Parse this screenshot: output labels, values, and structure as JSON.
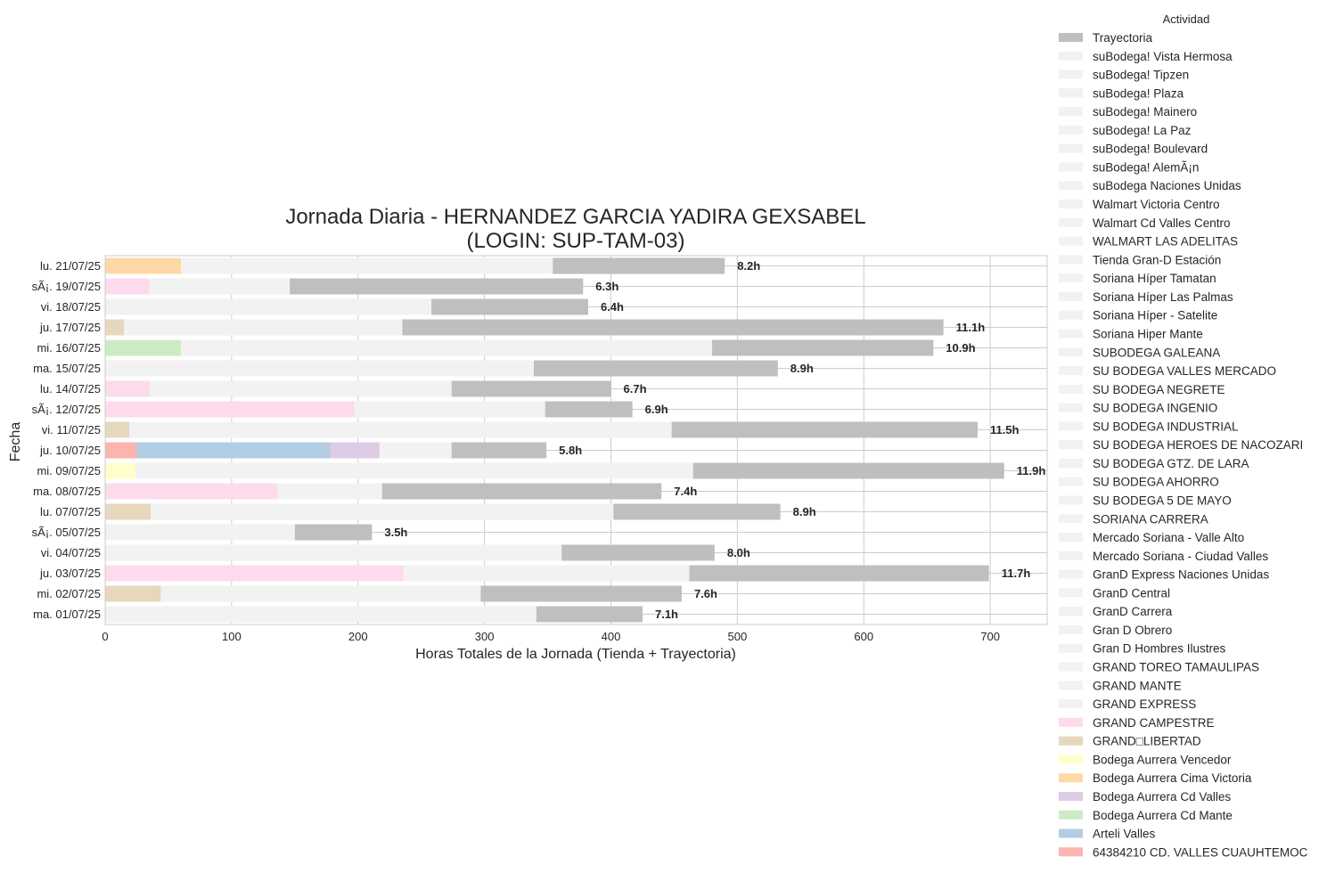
{
  "chart_data": {
    "type": "bar",
    "orientation": "horizontal",
    "stacked": true,
    "title": "Jornada Diaria - HERNANDEZ GARCIA YADIRA GEXSABEL",
    "subtitle": "(LOGIN: SUP-TAM-03)",
    "xlabel": "Horas Totales de la Jornada (Tienda + Trayectoria)",
    "ylabel": "Fecha",
    "xlim": [
      0,
      745
    ],
    "xticks": [
      0,
      100,
      200,
      300,
      400,
      500,
      600,
      700
    ],
    "grid": true,
    "legend_title": "Actividad",
    "legend_position": "outside-right",
    "legend": [
      {
        "name": "Trayectoria",
        "color": "#bfbfbf"
      },
      {
        "name": "suBodega! Vista Hermosa",
        "color": "#f2f2f2"
      },
      {
        "name": "suBodega! Tipzen",
        "color": "#f2f2f2"
      },
      {
        "name": "suBodega! Plaza",
        "color": "#f2f2f2"
      },
      {
        "name": "suBodega! Mainero",
        "color": "#f2f2f2"
      },
      {
        "name": "suBodega! La Paz",
        "color": "#f2f2f2"
      },
      {
        "name": "suBodega! Boulevard",
        "color": "#f2f2f2"
      },
      {
        "name": "suBodega! AlemÃ¡n",
        "color": "#f2f2f2"
      },
      {
        "name": "suBodega Naciones Unidas",
        "color": "#f2f2f2"
      },
      {
        "name": "Walmart Victoria Centro",
        "color": "#f2f2f2"
      },
      {
        "name": "Walmart Cd Valles Centro",
        "color": "#f2f2f2"
      },
      {
        "name": "WALMART LAS ADELITAS",
        "color": "#f2f2f2"
      },
      {
        "name": "Tienda Gran-D Estación",
        "color": "#f2f2f2"
      },
      {
        "name": "Soriana Híper Tamatan",
        "color": "#f2f2f2"
      },
      {
        "name": "Soriana Híper Las Palmas",
        "color": "#f2f2f2"
      },
      {
        "name": "Soriana Híper - Satelite",
        "color": "#f2f2f2"
      },
      {
        "name": "Soriana Hiper Mante",
        "color": "#f2f2f2"
      },
      {
        "name": "SUBODEGA GALEANA",
        "color": "#f2f2f2"
      },
      {
        "name": "SU BODEGA VALLES MERCADO",
        "color": "#f2f2f2"
      },
      {
        "name": "SU BODEGA NEGRETE",
        "color": "#f2f2f2"
      },
      {
        "name": "SU BODEGA INGENIO",
        "color": "#f2f2f2"
      },
      {
        "name": "SU BODEGA INDUSTRIAL",
        "color": "#f2f2f2"
      },
      {
        "name": "SU BODEGA HEROES DE NACOZARI",
        "color": "#f2f2f2"
      },
      {
        "name": "SU BODEGA GTZ. DE LARA",
        "color": "#f2f2f2"
      },
      {
        "name": "SU BODEGA AHORRO",
        "color": "#f2f2f2"
      },
      {
        "name": "SU BODEGA 5 DE MAYO",
        "color": "#f2f2f2"
      },
      {
        "name": "SORIANA CARRERA",
        "color": "#f2f2f2"
      },
      {
        "name": "Mercado Soriana - Valle Alto",
        "color": "#f2f2f2"
      },
      {
        "name": "Mercado Soriana - Ciudad Valles",
        "color": "#f2f2f2"
      },
      {
        "name": "GranD Express Naciones Unidas",
        "color": "#f2f2f2"
      },
      {
        "name": "GranD Central",
        "color": "#f2f2f2"
      },
      {
        "name": "GranD Carrera",
        "color": "#f2f2f2"
      },
      {
        "name": "Gran D Obrero",
        "color": "#f2f2f2"
      },
      {
        "name": "Gran D Hombres Ilustres",
        "color": "#f2f2f2"
      },
      {
        "name": "GRAND TOREO TAMAULIPAS",
        "color": "#f2f2f2"
      },
      {
        "name": "GRAND MANTE",
        "color": "#f2f2f2"
      },
      {
        "name": "GRAND EXPRESS",
        "color": "#f2f2f2"
      },
      {
        "name": "GRAND CAMPESTRE",
        "color": "#fddaec"
      },
      {
        "name": "GRAND□LIBERTAD",
        "color": "#e5d8bd"
      },
      {
        "name": "Bodega Aurrera Vencedor",
        "color": "#ffffcc"
      },
      {
        "name": "Bodega Aurrera Cima Victoria",
        "color": "#fed9a6"
      },
      {
        "name": "Bodega Aurrera Cd Valles",
        "color": "#decbe4"
      },
      {
        "name": "Bodega Aurrera Cd Mante",
        "color": "#ccebc5"
      },
      {
        "name": "Arteli Valles",
        "color": "#b3cde3"
      },
      {
        "name": "64384210 CD. VALLES CUAUHTEMOC",
        "color": "#fbb4ae"
      }
    ],
    "rows": [
      {
        "date": "lu. 21/07/25",
        "total_label": "8.2h",
        "segments": [
          {
            "activity": "Bodega Aurrera Cima Victoria",
            "start": 0,
            "end": 60
          },
          {
            "activity": "suBodega! Plaza",
            "start": 60,
            "end": 354
          },
          {
            "activity": "Trayectoria",
            "start": 354,
            "end": 490
          }
        ]
      },
      {
        "date": "sÃ¡. 19/07/25",
        "total_label": "6.3h",
        "segments": [
          {
            "activity": "GRAND CAMPESTRE",
            "start": 0,
            "end": 35
          },
          {
            "activity": "suBodega! Plaza",
            "start": 35,
            "end": 146
          },
          {
            "activity": "Trayectoria",
            "start": 146,
            "end": 378
          }
        ]
      },
      {
        "date": "vi. 18/07/25",
        "total_label": "6.4h",
        "segments": [
          {
            "activity": "suBodega! Plaza",
            "start": 0,
            "end": 258
          },
          {
            "activity": "Trayectoria",
            "start": 258,
            "end": 382
          }
        ]
      },
      {
        "date": "ju. 17/07/25",
        "total_label": "11.1h",
        "segments": [
          {
            "activity": "GRAND□LIBERTAD",
            "start": 0,
            "end": 15
          },
          {
            "activity": "suBodega! Plaza",
            "start": 15,
            "end": 235
          },
          {
            "activity": "Trayectoria",
            "start": 235,
            "end": 663
          }
        ]
      },
      {
        "date": "mi. 16/07/25",
        "total_label": "10.9h",
        "segments": [
          {
            "activity": "Bodega Aurrera Cd Mante",
            "start": 0,
            "end": 60
          },
          {
            "activity": "suBodega! Plaza",
            "start": 60,
            "end": 480
          },
          {
            "activity": "Trayectoria",
            "start": 480,
            "end": 655
          }
        ]
      },
      {
        "date": "ma. 15/07/25",
        "total_label": "8.9h",
        "segments": [
          {
            "activity": "suBodega! Plaza",
            "start": 0,
            "end": 339
          },
          {
            "activity": "Trayectoria",
            "start": 339,
            "end": 532
          }
        ]
      },
      {
        "date": "lu. 14/07/25",
        "total_label": "6.7h",
        "segments": [
          {
            "activity": "GRAND CAMPESTRE",
            "start": 0,
            "end": 35
          },
          {
            "activity": "suBodega! Plaza",
            "start": 35,
            "end": 274
          },
          {
            "activity": "Trayectoria",
            "start": 274,
            "end": 400
          }
        ]
      },
      {
        "date": "sÃ¡. 12/07/25",
        "total_label": "6.9h",
        "segments": [
          {
            "activity": "GRAND CAMPESTRE",
            "start": 0,
            "end": 197
          },
          {
            "activity": "suBodega! Plaza",
            "start": 197,
            "end": 348
          },
          {
            "activity": "Trayectoria",
            "start": 348,
            "end": 417
          }
        ]
      },
      {
        "date": "vi. 11/07/25",
        "total_label": "11.5h",
        "segments": [
          {
            "activity": "GRAND□LIBERTAD",
            "start": 0,
            "end": 19
          },
          {
            "activity": "suBodega! Plaza",
            "start": 19,
            "end": 448
          },
          {
            "activity": "Trayectoria",
            "start": 448,
            "end": 690
          }
        ]
      },
      {
        "date": "ju. 10/07/25",
        "total_label": "5.8h",
        "segments": [
          {
            "activity": "64384210 CD. VALLES CUAUHTEMOC",
            "start": 0,
            "end": 25
          },
          {
            "activity": "Arteli Valles",
            "start": 25,
            "end": 178
          },
          {
            "activity": "Bodega Aurrera Cd Valles",
            "start": 178,
            "end": 217
          },
          {
            "activity": "suBodega! Plaza",
            "start": 217,
            "end": 274
          },
          {
            "activity": "Trayectoria",
            "start": 274,
            "end": 349
          }
        ]
      },
      {
        "date": "mi. 09/07/25",
        "total_label": "11.9h",
        "segments": [
          {
            "activity": "Bodega Aurrera Vencedor",
            "start": 0,
            "end": 24
          },
          {
            "activity": "suBodega! Plaza",
            "start": 24,
            "end": 465
          },
          {
            "activity": "Trayectoria",
            "start": 465,
            "end": 711
          }
        ]
      },
      {
        "date": "ma. 08/07/25",
        "total_label": "7.4h",
        "segments": [
          {
            "activity": "GRAND CAMPESTRE",
            "start": 0,
            "end": 136
          },
          {
            "activity": "suBodega! Plaza",
            "start": 136,
            "end": 219
          },
          {
            "activity": "Trayectoria",
            "start": 219,
            "end": 440
          }
        ]
      },
      {
        "date": "lu. 07/07/25",
        "total_label": "8.9h",
        "segments": [
          {
            "activity": "GRAND□LIBERTAD",
            "start": 0,
            "end": 36
          },
          {
            "activity": "suBodega! Plaza",
            "start": 36,
            "end": 402
          },
          {
            "activity": "Trayectoria",
            "start": 402,
            "end": 534
          }
        ]
      },
      {
        "date": "sÃ¡. 05/07/25",
        "total_label": "3.5h",
        "segments": [
          {
            "activity": "suBodega! Plaza",
            "start": 0,
            "end": 150
          },
          {
            "activity": "Trayectoria",
            "start": 150,
            "end": 211
          }
        ]
      },
      {
        "date": "vi. 04/07/25",
        "total_label": "8.0h",
        "segments": [
          {
            "activity": "suBodega! Plaza",
            "start": 0,
            "end": 361
          },
          {
            "activity": "Trayectoria",
            "start": 361,
            "end": 482
          }
        ]
      },
      {
        "date": "ju. 03/07/25",
        "total_label": "11.7h",
        "segments": [
          {
            "activity": "GRAND CAMPESTRE",
            "start": 0,
            "end": 236
          },
          {
            "activity": "suBodega! Plaza",
            "start": 236,
            "end": 462
          },
          {
            "activity": "Trayectoria",
            "start": 462,
            "end": 699
          }
        ]
      },
      {
        "date": "mi. 02/07/25",
        "total_label": "7.6h",
        "segments": [
          {
            "activity": "GRAND□LIBERTAD",
            "start": 0,
            "end": 44
          },
          {
            "activity": "suBodega! Plaza",
            "start": 44,
            "end": 297
          },
          {
            "activity": "Trayectoria",
            "start": 297,
            "end": 456
          }
        ]
      },
      {
        "date": "ma. 01/07/25",
        "total_label": "7.1h",
        "segments": [
          {
            "activity": "suBodega! Plaza",
            "start": 0,
            "end": 341
          },
          {
            "activity": "Trayectoria",
            "start": 341,
            "end": 425
          }
        ]
      }
    ]
  }
}
